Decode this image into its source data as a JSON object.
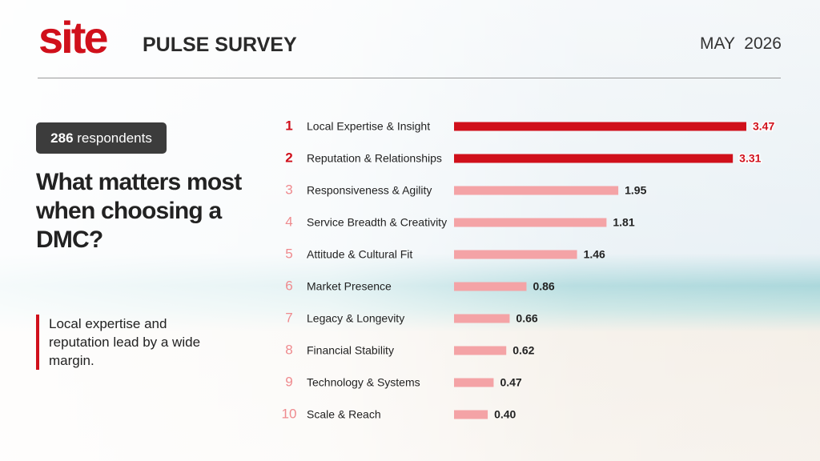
{
  "header": {
    "logo": "site",
    "title": "PULSE SURVEY",
    "date": "MAY  2026"
  },
  "respondents": {
    "count": 286,
    "label": "respondents"
  },
  "question": "What matters most when choosing a DMC?",
  "note": "Local expertise and reputation lead by a wide margin.",
  "chart_data": {
    "type": "bar",
    "orientation": "horizontal",
    "ranks": [
      1,
      2,
      3,
      4,
      5,
      6,
      7,
      8,
      9,
      10
    ],
    "categories": [
      "Local Expertise & Insight",
      "Reputation & Relationships",
      "Responsiveness & Agility",
      "Service Breadth & Creativity",
      "Attitude & Cultural Fit",
      "Market Presence",
      "Legacy & Longevity",
      "Financial Stability",
      "Technology & Systems",
      "Scale & Reach"
    ],
    "values": [
      3.47,
      3.31,
      1.95,
      1.81,
      1.46,
      0.86,
      0.66,
      0.62,
      0.47,
      0.4
    ],
    "value_labels": [
      "3.47",
      "3.31",
      "1.95",
      "1.81",
      "1.46",
      "0.86",
      "0.66",
      "0.62",
      "0.47",
      "0.40"
    ],
    "colors": [
      "#d0101b",
      "#d0101b",
      "#f4a3a6",
      "#f4a3a6",
      "#f4a3a6",
      "#f4a3a6",
      "#f4a3a6",
      "#f4a3a6",
      "#f4a3a6",
      "#f4a3a6"
    ]
  }
}
